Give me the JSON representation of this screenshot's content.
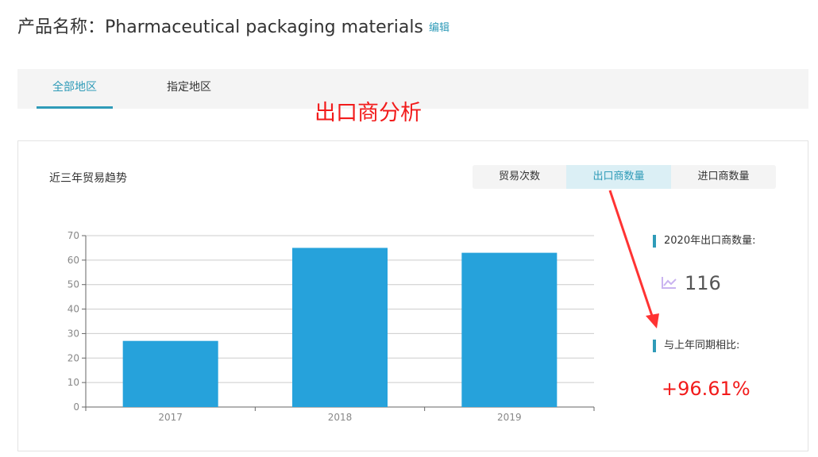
{
  "header": {
    "title": "产品名称：Pharmaceutical packaging materials",
    "edit_label": "编辑"
  },
  "tabs": [
    {
      "label": "全部地区",
      "active": true
    },
    {
      "label": "指定地区",
      "active": false
    }
  ],
  "annotation": {
    "text": "出口商分析",
    "color": "#f21b1b"
  },
  "card": {
    "title": "近三年贸易趋势",
    "segments": [
      {
        "label": "贸易次数"
      },
      {
        "label": "出口商数量",
        "active": true
      },
      {
        "label": "进口商数量"
      }
    ]
  },
  "stats": {
    "count_label": "2020年出口商数量:",
    "count_value": "116",
    "count_icon": "line-chart-icon",
    "compare_label": "与上年同期相比:",
    "compare_value": "+96.61%"
  },
  "chart_data": {
    "type": "bar",
    "categories": [
      "2017",
      "2018",
      "2019"
    ],
    "values": [
      27,
      65,
      63
    ],
    "ylim": [
      0,
      70
    ],
    "yticks": [
      "0",
      "10",
      "20",
      "30",
      "40",
      "50",
      "60",
      "70"
    ],
    "grid": true,
    "bar_color": "#26a2db"
  }
}
